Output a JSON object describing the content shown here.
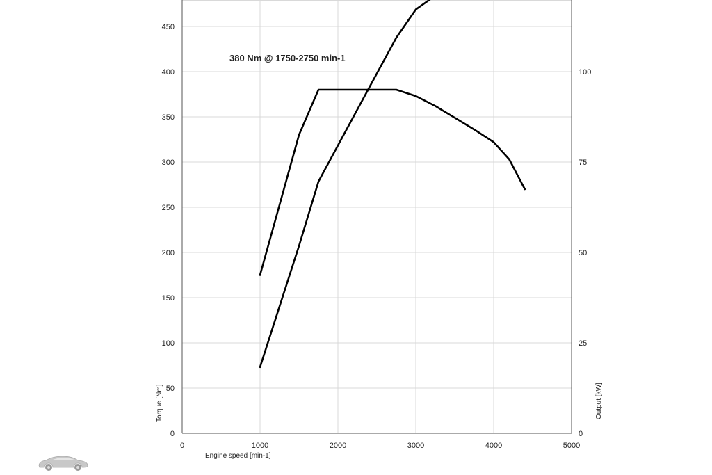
{
  "chart_data": {
    "type": "line",
    "title": "",
    "annotation": "380 Nm @ 1750-2750 min-1",
    "xlabel": "Engine speed [min-1]",
    "ylabel_left": "Torque [Nm]",
    "ylabel_right": "Output [kW]",
    "xlim": [
      0,
      5000
    ],
    "ylim_left": [
      0,
      480
    ],
    "ylim_right": [
      0,
      120
    ],
    "x_ticks": [
      0,
      1000,
      2000,
      3000,
      4000,
      5000
    ],
    "y_ticks_left": [
      0,
      50,
      100,
      150,
      200,
      250,
      300,
      350,
      400,
      450
    ],
    "y_ticks_right": [
      0,
      25,
      50,
      75,
      100
    ],
    "grid": true,
    "legend": "none",
    "series": [
      {
        "axis": "left",
        "color": "#000000",
        "x": [
          1000,
          1500,
          1750,
          2000,
          2500,
          2750,
          3000,
          3250,
          3500,
          3750,
          4000,
          4200,
          4400
        ],
        "y": [
          175,
          330,
          380,
          380,
          380,
          380,
          373,
          362,
          349,
          336,
          322,
          303,
          270
        ]
      },
      {
        "axis": "right",
        "color": "#000000",
        "x": [
          1000,
          1500,
          1750,
          2000,
          2500,
          2750,
          3000,
          3250
        ],
        "y": [
          18.3,
          51.8,
          69.6,
          79.6,
          99.5,
          109.4,
          117.2,
          121
        ]
      }
    ]
  }
}
